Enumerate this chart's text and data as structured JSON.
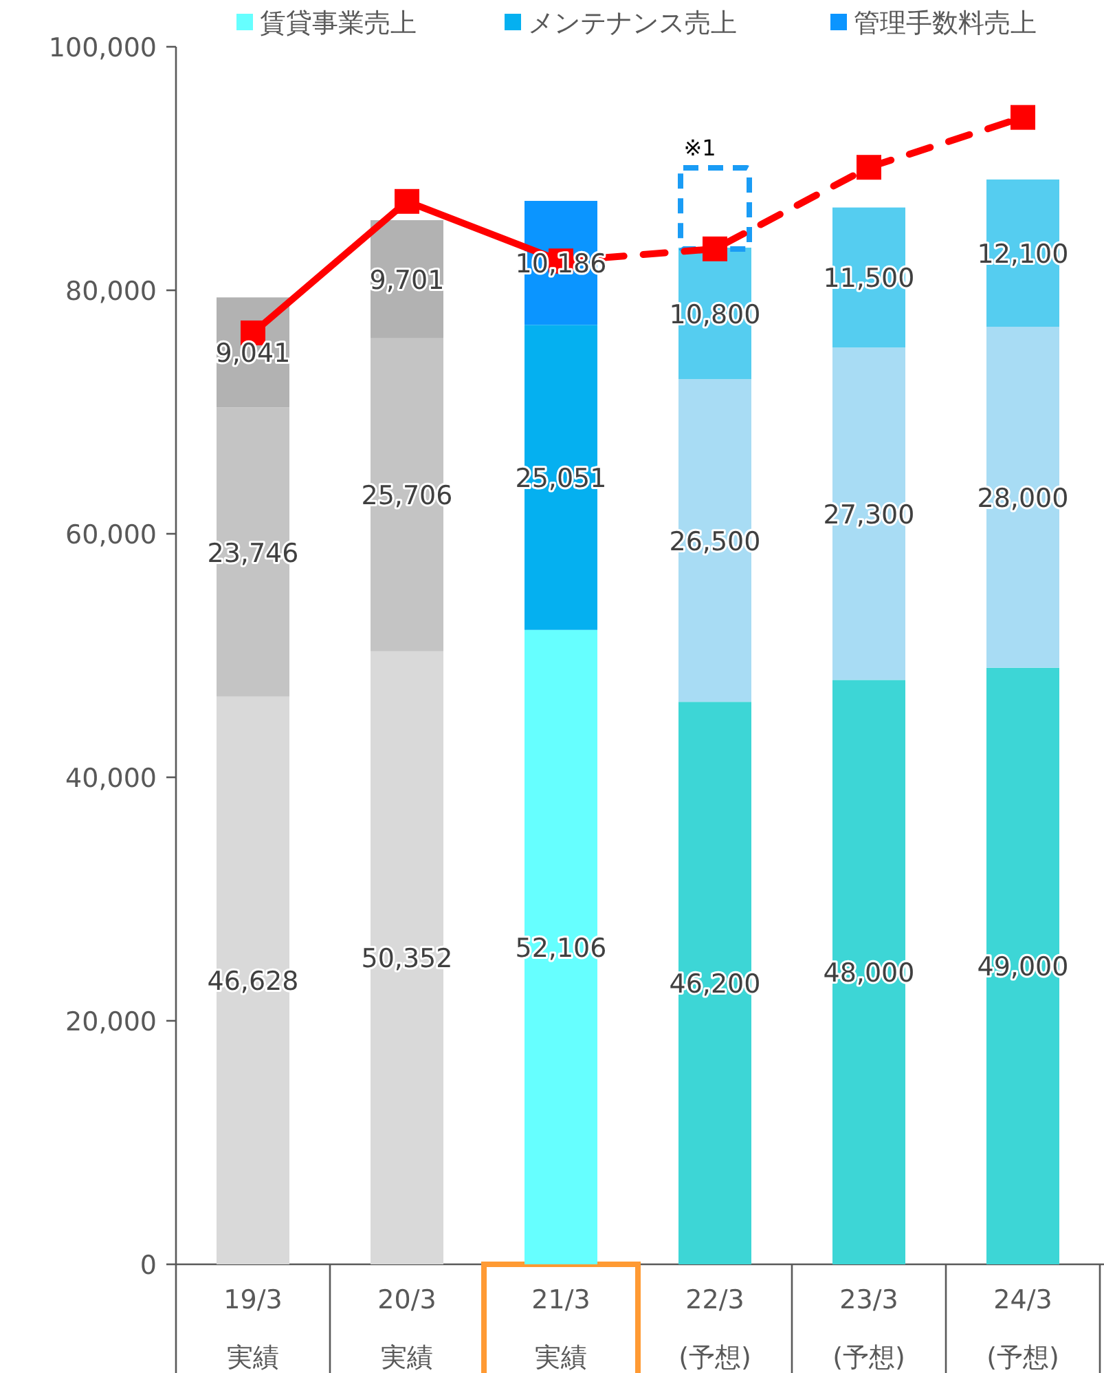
{
  "chart_data": {
    "type": "bar",
    "stacked": true,
    "legend": "top",
    "grid": false,
    "categories": [
      "19/3\n実績",
      "20/3\n実績",
      "21/3\n実績",
      "22/3\n(予想)",
      "23/3\n(予想)",
      "24/3\n(予想)"
    ],
    "ylim": [
      0,
      100000
    ],
    "yticks": [
      {
        "value": 0,
        "label": "0"
      },
      {
        "value": 20000,
        "label": "20,000"
      },
      {
        "value": 40000,
        "label": "40,000"
      },
      {
        "value": 60000,
        "label": "60,000"
      },
      {
        "value": 80000,
        "label": "80,000"
      },
      {
        "value": 100000,
        "label": "100,000"
      }
    ],
    "series": [
      {
        "name": "賃貸事業売上",
        "color": "#66ffff",
        "colors": [
          "#d9d9d9",
          "#d9d9d9",
          "#66ffff",
          "#3dd6d6",
          "#3dd6d6",
          "#3dd6d6"
        ],
        "values": [
          46628,
          50352,
          52106,
          46200,
          48000,
          49000
        ],
        "value_labels": [
          "46,628",
          "50,352",
          "52,106",
          "46,200",
          "48,000",
          "49,000"
        ]
      },
      {
        "name": "メンテナンス売上",
        "color": "#05b0f0",
        "colors": [
          "#c4c4c4",
          "#c4c4c4",
          "#05b0f0",
          "#a8dcf4",
          "#a8dcf4",
          "#a8dcf4"
        ],
        "values": [
          23746,
          25706,
          25051,
          26500,
          27300,
          28000
        ],
        "value_labels": [
          "23,746",
          "25,706",
          "25,051",
          "26,500",
          "27,300",
          "28,000"
        ]
      },
      {
        "name": "管理手数料売上",
        "color": "#0b95ff",
        "colors": [
          "#b2b2b2",
          "#b2b2b2",
          "#0b95ff",
          "#55cdf0",
          "#55cdf0",
          "#55cdf0"
        ],
        "values": [
          9041,
          9701,
          10186,
          10800,
          11500,
          12100
        ],
        "value_labels": [
          "9,041",
          "9,701",
          "10,186",
          "10,800",
          "11,500",
          "12,100"
        ]
      },
      {
        "type": "line",
        "color": "#ff0000",
        "marker": "square",
        "line_style": "solid",
        "values": [
          76500,
          87300,
          82400,
          null,
          null,
          null
        ]
      },
      {
        "type": "line",
        "color": "#ff0000",
        "marker": "square",
        "line_style": "dashed",
        "values": [
          null,
          null,
          82400,
          83400,
          90100,
          94200
        ]
      }
    ],
    "annotations": [
      "※1"
    ]
  }
}
